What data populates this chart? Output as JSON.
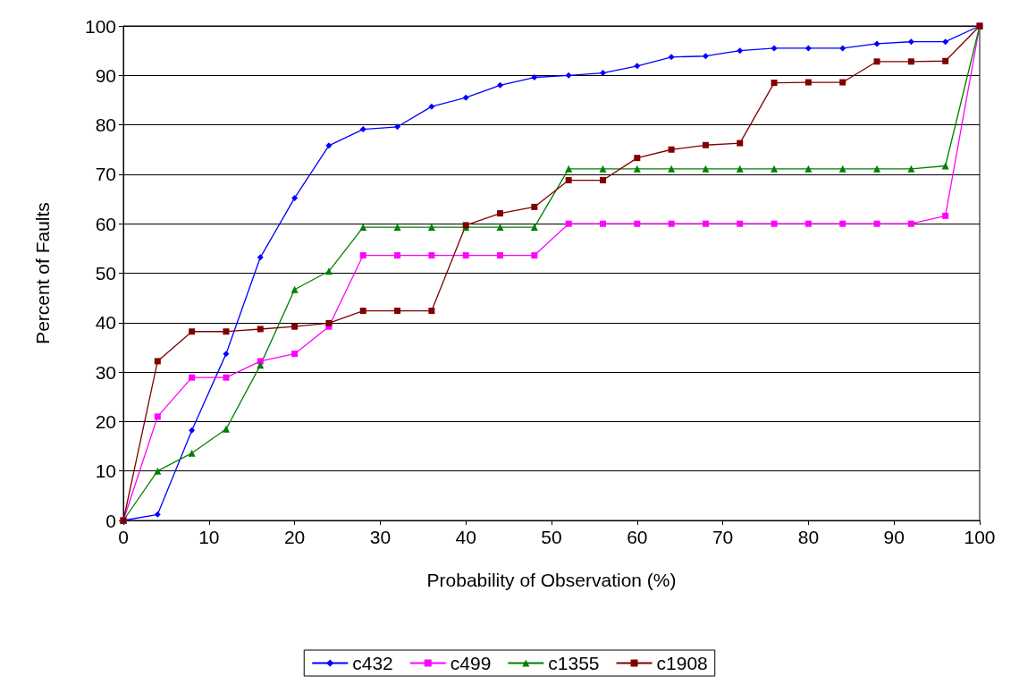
{
  "chart_data": {
    "type": "line",
    "xlabel": "Probability of Observation (%)",
    "ylabel": "Percent of Faults",
    "x": [
      0,
      4,
      8,
      12,
      16,
      20,
      24,
      28,
      32,
      36,
      40,
      44,
      48,
      52,
      56,
      60,
      64,
      68,
      72,
      76,
      80,
      84,
      88,
      92,
      96,
      100
    ],
    "series": [
      {
        "name": "c432",
        "color": "#0000ff",
        "marker": "diamond",
        "values": [
          0,
          1.2,
          18.2,
          33.7,
          53.2,
          65.2,
          75.8,
          79.1,
          79.6,
          83.7,
          85.5,
          88,
          89.6,
          90,
          90.5,
          91.9,
          93.7,
          93.9,
          95,
          95.5,
          95.5,
          95.5,
          96.4,
          96.8,
          96.8,
          100
        ]
      },
      {
        "name": "c499",
        "color": "#ff00ff",
        "marker": "square",
        "values": [
          0,
          21,
          28.9,
          28.9,
          32.2,
          33.7,
          39.2,
          53.6,
          53.6,
          53.6,
          53.6,
          53.6,
          53.6,
          60,
          60,
          60,
          60,
          60,
          60,
          60,
          60,
          60,
          60,
          60,
          61.6,
          100
        ]
      },
      {
        "name": "c1355",
        "color": "#008000",
        "marker": "triangle",
        "values": [
          0,
          10,
          13.6,
          18.5,
          31.4,
          46.7,
          50.4,
          59.3,
          59.3,
          59.3,
          59.3,
          59.3,
          59.3,
          71.1,
          71.1,
          71.1,
          71.1,
          71.1,
          71.1,
          71.1,
          71.1,
          71.1,
          71.1,
          71.1,
          71.7,
          100
        ]
      },
      {
        "name": "c1908",
        "color": "#800000",
        "marker": "square",
        "values": [
          0,
          32.2,
          38.2,
          38.2,
          38.7,
          39.2,
          39.9,
          42.4,
          42.4,
          42.4,
          59.7,
          62.1,
          63.4,
          68.8,
          68.8,
          73.3,
          75,
          75.9,
          76.3,
          88.5,
          88.6,
          88.6,
          92.8,
          92.8,
          92.9,
          100
        ]
      }
    ],
    "xlim": [
      0,
      100
    ],
    "xticks": [
      0,
      10,
      20,
      30,
      40,
      50,
      60,
      70,
      80,
      90,
      100
    ],
    "ylim": [
      0,
      100
    ],
    "yticks": [
      0,
      10,
      20,
      30,
      40,
      50,
      60,
      70,
      80,
      90,
      100
    ],
    "grid": "y",
    "legend": "bottom",
    "line_style": "solid"
  }
}
